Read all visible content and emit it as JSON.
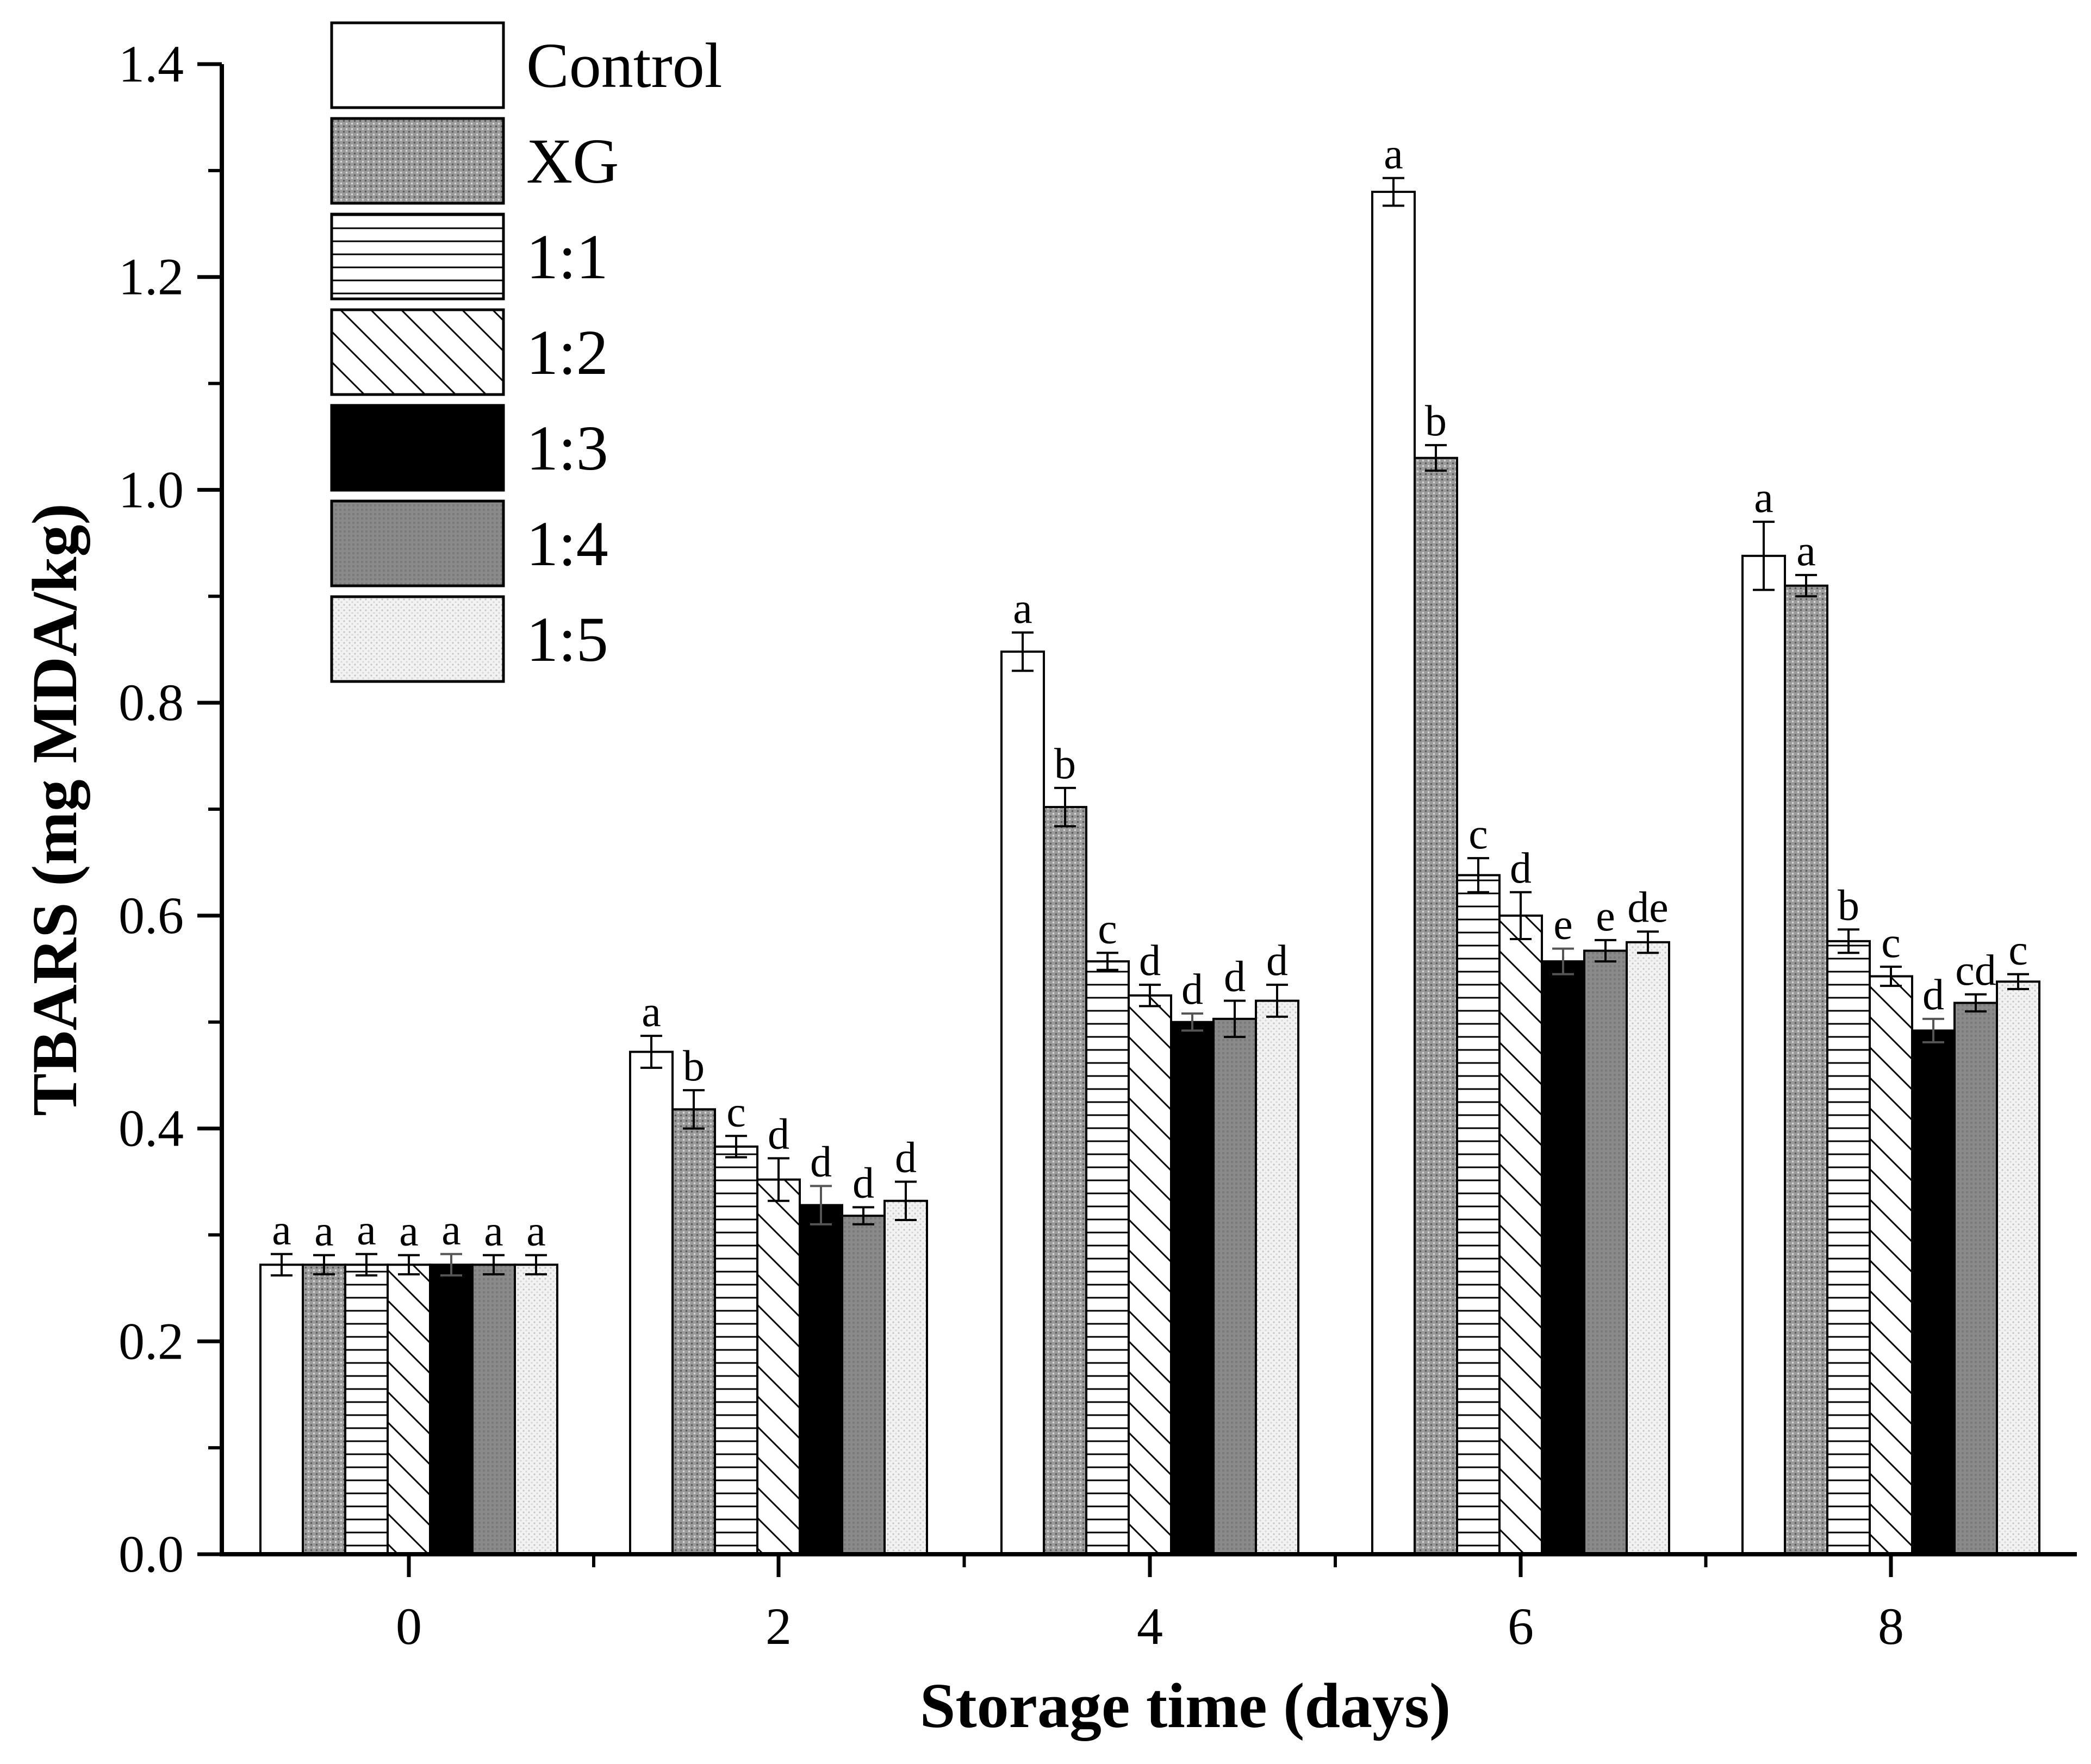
{
  "chart_data": {
    "type": "bar",
    "xlabel": "Storage time (days)",
    "ylabel": "TBARS (mg MDA/kg)",
    "ylim": [
      0.0,
      1.4
    ],
    "yticks": [
      "0.0",
      "0.2",
      "0.4",
      "0.6",
      "0.8",
      "1.0",
      "1.2",
      "1.4"
    ],
    "categories": [
      "0",
      "2",
      "4",
      "6",
      "8"
    ],
    "legend_position": "top-left",
    "grid": false,
    "series": [
      {
        "name": "Control",
        "pattern": "white",
        "values": [
          0.272,
          0.472,
          0.848,
          1.28,
          0.938
        ],
        "errors": [
          0.01,
          0.015,
          0.018,
          0.013,
          0.032
        ],
        "labels": [
          "a",
          "a",
          "a",
          "a",
          "a"
        ]
      },
      {
        "name": "XG",
        "pattern": "dots",
        "values": [
          0.272,
          0.418,
          0.702,
          1.03,
          0.91
        ],
        "errors": [
          0.009,
          0.018,
          0.018,
          0.012,
          0.01
        ],
        "labels": [
          "a",
          "b",
          "b",
          "b",
          "a"
        ]
      },
      {
        "name": "1:1",
        "pattern": "hlines",
        "values": [
          0.272,
          0.383,
          0.557,
          0.638,
          0.576
        ],
        "errors": [
          0.01,
          0.01,
          0.008,
          0.016,
          0.011
        ],
        "labels": [
          "a",
          "c",
          "c",
          "c",
          "b"
        ]
      },
      {
        "name": "1:2",
        "pattern": "diagonal",
        "values": [
          0.272,
          0.352,
          0.525,
          0.6,
          0.543
        ],
        "errors": [
          0.009,
          0.02,
          0.01,
          0.022,
          0.009
        ],
        "labels": [
          "a",
          "d",
          "d",
          "d",
          "c"
        ]
      },
      {
        "name": "1:3",
        "pattern": "black",
        "values": [
          0.272,
          0.328,
          0.5,
          0.557,
          0.492
        ],
        "errors": [
          0.01,
          0.018,
          0.008,
          0.012,
          0.011
        ],
        "labels": [
          "a",
          "d",
          "d",
          "e",
          "d"
        ]
      },
      {
        "name": "1:4",
        "pattern": "gray",
        "values": [
          0.272,
          0.318,
          0.503,
          0.567,
          0.518
        ],
        "errors": [
          0.009,
          0.008,
          0.017,
          0.01,
          0.008
        ],
        "labels": [
          "a",
          "d",
          "d",
          "e",
          "cd"
        ]
      },
      {
        "name": "1:5",
        "pattern": "lightdots",
        "values": [
          0.272,
          0.332,
          0.52,
          0.575,
          0.538
        ],
        "errors": [
          0.009,
          0.018,
          0.015,
          0.01,
          0.007
        ],
        "labels": [
          "a",
          "d",
          "d",
          "de",
          "c"
        ]
      }
    ],
    "colors": {
      "axis": "#000000",
      "bar_stroke": "#000000",
      "black_fill": "#000000",
      "gray_fill": "#8a8a8a",
      "dots_fill": "#9a9a9a",
      "light_fill": "#efefef",
      "white_fill": "#ffffff"
    }
  }
}
